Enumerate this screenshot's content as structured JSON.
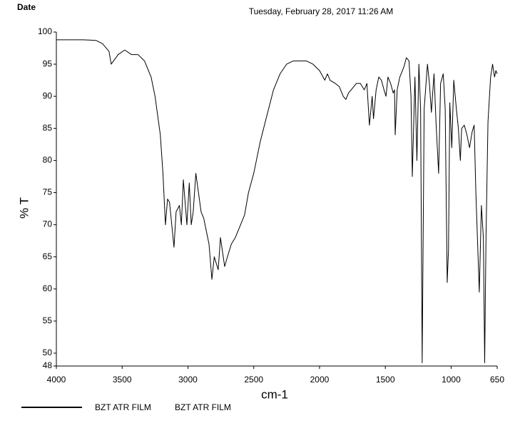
{
  "chart_data": {
    "type": "line",
    "header_left": "Date",
    "title": "Tuesday, February 28, 2017 11:26 AM",
    "x_label": "cm-1",
    "y_label": "% T",
    "xlim": [
      4000,
      650
    ],
    "ylim": [
      48,
      100
    ],
    "xticks": [
      4000,
      3500,
      3000,
      2500,
      2000,
      1500,
      1000,
      650
    ],
    "yticks": [
      48,
      50,
      55,
      60,
      65,
      70,
      75,
      80,
      85,
      90,
      95,
      100
    ],
    "x": [
      4000,
      3800,
      3700,
      3650,
      3600,
      3583,
      3530,
      3480,
      3430,
      3380,
      3330,
      3280,
      3250,
      3210,
      3190,
      3171,
      3155,
      3140,
      3106,
      3090,
      3065,
      3050,
      3035,
      3008,
      2990,
      2975,
      2960,
      2940,
      2900,
      2880,
      2860,
      2840,
      2818,
      2800,
      2770,
      2753,
      2721,
      2700,
      2670,
      2640,
      2600,
      2570,
      2540,
      2500,
      2450,
      2400,
      2350,
      2300,
      2250,
      2200,
      2100,
      2050,
      2000,
      1960,
      1940,
      1920,
      1880,
      1850,
      1820,
      1800,
      1780,
      1760,
      1720,
      1690,
      1660,
      1640,
      1621,
      1600,
      1590,
      1570,
      1550,
      1530,
      1510,
      1495,
      1480,
      1460,
      1440,
      1430,
      1425,
      1410,
      1390,
      1360,
      1340,
      1320,
      1305,
      1295,
      1275,
      1260,
      1245,
      1232,
      1220,
      1205,
      1180,
      1165,
      1150,
      1130,
      1115,
      1095,
      1080,
      1060,
      1045,
      1030,
      1020,
      1010,
      995,
      980,
      960,
      945,
      930,
      920,
      900,
      880,
      860,
      840,
      825,
      812,
      786,
      770,
      755,
      745,
      735,
      720,
      700,
      685,
      670,
      660,
      650
    ],
    "series": [
      {
        "name": "BZT ATR FILM",
        "sample": "BZT ATR FILM",
        "color": "#000000",
        "values": [
          98.8,
          98.8,
          98.7,
          98.2,
          97,
          95,
          96.5,
          97.2,
          96.5,
          96.5,
          95.5,
          93,
          90,
          84,
          78,
          70,
          74,
          73.5,
          66.5,
          72,
          73,
          70,
          77,
          70,
          76.5,
          70,
          72,
          78,
          72,
          71,
          69,
          67,
          61.5,
          65,
          63,
          68,
          63.5,
          65,
          67,
          68,
          70,
          71.5,
          75,
          78,
          83,
          87,
          91,
          93.5,
          95,
          95.5,
          95.5,
          95,
          94,
          92.5,
          93.5,
          92.5,
          92,
          91.5,
          90,
          89.5,
          90.5,
          91,
          92,
          92,
          91,
          92,
          85.5,
          90,
          86.5,
          91,
          93,
          92.5,
          91,
          90,
          93,
          92,
          90.5,
          91,
          84,
          91,
          93,
          94.5,
          96,
          95.5,
          90,
          77.5,
          93,
          80,
          95,
          88,
          48.5,
          88,
          95,
          92,
          87.5,
          93.5,
          86,
          78,
          92,
          93.5,
          88,
          61,
          66,
          89,
          82,
          92.5,
          88,
          85,
          80,
          85,
          85.5,
          84,
          82,
          84.5,
          85.5,
          75,
          59.5,
          73,
          68,
          48.5,
          68,
          86,
          93,
          95,
          93,
          94,
          93.5
        ]
      }
    ]
  }
}
